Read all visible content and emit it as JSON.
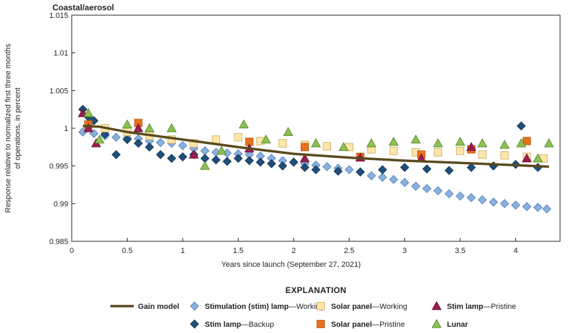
{
  "chart_data": {
    "type": "scatter",
    "title": "Coastal/aerosol",
    "xlabel": "Years since launch (September 27, 2021)",
    "ylabel_line1": "Response relative to normalized first three months",
    "ylabel_line2": "of operations, in percent",
    "xlim": [
      0,
      4.4
    ],
    "ylim": [
      0.985,
      1.015
    ],
    "xticks": [
      0,
      0.5,
      1,
      1.5,
      2,
      2.5,
      3,
      3.5,
      4
    ],
    "xtick_labels": [
      "0",
      "0.5",
      "1",
      "1.5",
      "2",
      "2.5",
      "3",
      "3.5",
      "4"
    ],
    "yticks": [
      0.985,
      0.99,
      0.995,
      1,
      1.005,
      1.01,
      1.015
    ],
    "ytick_labels": [
      "0.985",
      "0.99",
      "0.995",
      "1",
      "1.005",
      "1.01",
      "1.015"
    ],
    "grid": false,
    "legend_title": "EXPLANATION",
    "legend_placement": "bottom",
    "series": [
      {
        "name": "Gain model",
        "legend_bold": "Gain model",
        "legend_rest": "",
        "marker": "line",
        "color": "#5a4a1e",
        "x": [
          0.1,
          0.25,
          0.5,
          0.75,
          1.0,
          1.5,
          2.0,
          2.5,
          3.0,
          3.5,
          4.0,
          4.3
        ],
        "y": [
          1.0003,
          1.0002,
          0.9995,
          0.999,
          0.9985,
          0.9975,
          0.9966,
          0.9961,
          0.9957,
          0.9954,
          0.9951,
          0.9949
        ]
      },
      {
        "name": "Stimulation (stim) lamp—Working",
        "legend_bold": "Stimulation (stim) lamp",
        "legend_rest": "—Working",
        "marker": "diamond",
        "color": "#8ab0dc",
        "stroke": "#4a79b4",
        "x": [
          0.1,
          0.2,
          0.3,
          0.4,
          0.5,
          0.6,
          0.7,
          0.8,
          0.9,
          1.0,
          1.1,
          1.2,
          1.3,
          1.4,
          1.5,
          1.6,
          1.7,
          1.8,
          1.9,
          2.0,
          2.1,
          2.2,
          2.3,
          2.4,
          2.5,
          2.6,
          2.7,
          2.8,
          2.9,
          3.0,
          3.1,
          3.2,
          3.3,
          3.4,
          3.5,
          3.6,
          3.7,
          3.8,
          3.9,
          4.0,
          4.1,
          4.2,
          4.28
        ],
        "y": [
          0.9995,
          0.9993,
          0.999,
          0.9988,
          0.9987,
          0.9986,
          0.9983,
          0.9981,
          0.998,
          0.9977,
          0.9973,
          0.997,
          0.9968,
          0.9967,
          0.9966,
          0.9965,
          0.9963,
          0.996,
          0.9957,
          0.9955,
          0.9953,
          0.9951,
          0.9949,
          0.9947,
          0.9945,
          0.9942,
          0.9937,
          0.9935,
          0.9932,
          0.9928,
          0.9923,
          0.992,
          0.9917,
          0.9913,
          0.991,
          0.9908,
          0.9905,
          0.9902,
          0.99,
          0.9898,
          0.9896,
          0.9895,
          0.9893
        ]
      },
      {
        "name": "Stim lamp—Backup",
        "legend_bold": "Stim lamp",
        "legend_rest": "—Backup",
        "marker": "diamond",
        "color": "#1f4e79",
        "stroke": "#12304f",
        "x": [
          0.1,
          0.15,
          0.2,
          0.3,
          0.4,
          0.5,
          0.6,
          0.7,
          0.8,
          0.9,
          1.0,
          1.1,
          1.2,
          1.3,
          1.4,
          1.5,
          1.6,
          1.7,
          1.8,
          1.9,
          2.0,
          2.1,
          2.2,
          2.4,
          2.6,
          2.8,
          3.0,
          3.2,
          3.4,
          3.6,
          3.8,
          4.0,
          4.05,
          4.2
        ],
        "y": [
          1.0025,
          1.0015,
          1.001,
          0.9992,
          0.9965,
          0.9985,
          0.998,
          0.9975,
          0.9965,
          0.996,
          0.9962,
          0.9965,
          0.996,
          0.9958,
          0.9956,
          0.996,
          0.9957,
          0.9955,
          0.9953,
          0.995,
          0.9955,
          0.9948,
          0.9945,
          0.9943,
          0.9942,
          0.9945,
          0.9948,
          0.9946,
          0.9944,
          0.9948,
          0.995,
          0.9952,
          1.0003,
          0.9948
        ]
      },
      {
        "name": "Solar panel—Working",
        "legend_bold": "Solar panel",
        "legend_rest": "—Working",
        "marker": "square",
        "color": "#fde6a8",
        "stroke": "#c8a860",
        "x": [
          0.15,
          0.3,
          0.5,
          0.7,
          0.9,
          1.1,
          1.3,
          1.5,
          1.7,
          1.9,
          2.1,
          2.3,
          2.5,
          2.7,
          2.9,
          3.1,
          3.3,
          3.5,
          3.7,
          3.9,
          4.1,
          4.25
        ],
        "y": [
          1.0005,
          1.0,
          0.9995,
          0.999,
          0.9985,
          0.998,
          0.9985,
          0.9988,
          0.9983,
          0.998,
          0.9978,
          0.9976,
          0.9975,
          0.9972,
          0.997,
          0.9968,
          0.9968,
          0.997,
          0.9965,
          0.9964,
          0.9962,
          0.996
        ]
      },
      {
        "name": "Solar panel—Pristine",
        "legend_bold": "Solar panel",
        "legend_rest": "—Pristine",
        "marker": "square",
        "color": "#e8711c",
        "stroke": "#b4520e",
        "x": [
          0.15,
          0.6,
          1.6,
          2.1,
          2.6,
          3.15,
          3.6,
          4.1
        ],
        "y": [
          1.0005,
          1.0007,
          0.9982,
          0.9975,
          0.9962,
          0.9965,
          0.9972,
          0.9983
        ]
      },
      {
        "name": "Stim lamp—Pristine",
        "legend_bold": "Stim lamp",
        "legend_rest": "—Pristine",
        "marker": "triangle",
        "color": "#9b1c4f",
        "stroke": "#6a0f33",
        "x": [
          0.1,
          0.15,
          0.22,
          0.6,
          1.1,
          1.6,
          2.1,
          2.6,
          3.15,
          3.6,
          4.1
        ],
        "y": [
          1.002,
          1.0,
          0.998,
          1.0,
          0.9965,
          0.9973,
          0.996,
          0.9961,
          0.996,
          0.9975,
          0.996
        ]
      },
      {
        "name": "Lunar",
        "legend_bold": "Lunar",
        "legend_rest": "",
        "marker": "triangle",
        "color": "#8cc152",
        "stroke": "#4f7f24",
        "x": [
          0.15,
          0.25,
          0.5,
          0.7,
          0.9,
          1.2,
          1.35,
          1.55,
          1.75,
          1.95,
          2.2,
          2.45,
          2.7,
          2.9,
          3.1,
          3.3,
          3.5,
          3.7,
          3.9,
          4.05,
          4.2,
          4.3
        ],
        "y": [
          1.002,
          0.9985,
          1.0005,
          1.0,
          1.0,
          0.995,
          0.997,
          1.0005,
          0.9985,
          0.9995,
          0.998,
          0.9975,
          0.998,
          0.9982,
          0.9985,
          0.998,
          0.9982,
          0.998,
          0.9978,
          0.998,
          0.996,
          0.998
        ]
      }
    ]
  }
}
